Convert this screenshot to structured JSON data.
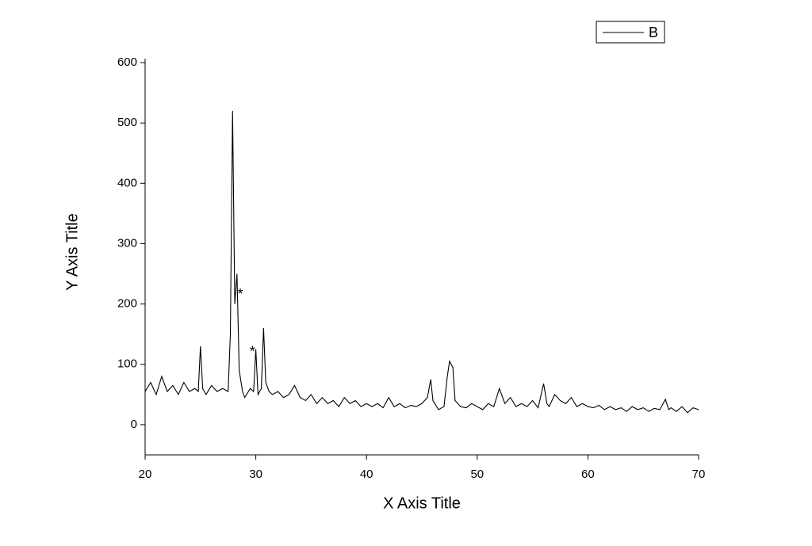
{
  "chart_data": {
    "type": "line",
    "x_label": "X Axis Title",
    "y_label": "Y Axis Title",
    "x": [
      20,
      20.5,
      21,
      21.5,
      22,
      22.5,
      23,
      23.5,
      24,
      24.5,
      24.8,
      25,
      25.2,
      25.5,
      26,
      26.5,
      27,
      27.5,
      27.7,
      27.9,
      28.1,
      28.3,
      28.5,
      28.8,
      29,
      29.5,
      29.8,
      30,
      30.2,
      30.5,
      30.7,
      30.9,
      31.2,
      31.5,
      32,
      32.5,
      33,
      33.5,
      34,
      34.5,
      35,
      35.5,
      36,
      36.5,
      37,
      37.5,
      38,
      38.5,
      39,
      39.5,
      40,
      40.5,
      41,
      41.5,
      42,
      42.5,
      43,
      43.5,
      44,
      44.5,
      45,
      45.5,
      45.8,
      46,
      46.5,
      47,
      47.3,
      47.5,
      47.8,
      48,
      48.5,
      49,
      49.5,
      50,
      50.5,
      51,
      51.5,
      52,
      52.5,
      53,
      53.5,
      54,
      54.5,
      55,
      55.5,
      56,
      56.3,
      56.5,
      57,
      57.5,
      58,
      58.5,
      59,
      59.5,
      60,
      60.5,
      61,
      61.5,
      62,
      62.5,
      63,
      63.5,
      64,
      64.5,
      65,
      65.5,
      66,
      66.5,
      67,
      67.3,
      67.5,
      68,
      68.5,
      69,
      69.5,
      70
    ],
    "series": [
      {
        "name": "B",
        "color": "#000000",
        "values": [
          55,
          70,
          50,
          80,
          55,
          65,
          50,
          70,
          55,
          60,
          55,
          130,
          60,
          50,
          65,
          55,
          60,
          55,
          150,
          520,
          200,
          250,
          90,
          55,
          45,
          60,
          55,
          125,
          50,
          60,
          160,
          70,
          55,
          50,
          55,
          45,
          50,
          65,
          45,
          40,
          50,
          35,
          45,
          35,
          40,
          30,
          45,
          35,
          40,
          30,
          35,
          30,
          35,
          28,
          45,
          30,
          35,
          28,
          32,
          30,
          35,
          45,
          75,
          40,
          25,
          30,
          80,
          105,
          95,
          40,
          30,
          28,
          35,
          30,
          25,
          35,
          30,
          60,
          35,
          45,
          30,
          35,
          30,
          40,
          28,
          68,
          35,
          30,
          50,
          40,
          35,
          45,
          30,
          35,
          30,
          28,
          32,
          25,
          30,
          25,
          28,
          22,
          30,
          25,
          28,
          22,
          27,
          25,
          42,
          25,
          28,
          22,
          30,
          20,
          28,
          25
        ]
      }
    ],
    "annotations": [
      {
        "text": "*",
        "x": 28.6,
        "y": 215,
        "color": "#ff0000"
      },
      {
        "text": "*",
        "x": 29.7,
        "y": 120,
        "color": "#ff0000"
      }
    ],
    "xlim": [
      20,
      70
    ],
    "xticks": [
      20,
      30,
      40,
      50,
      60,
      70
    ],
    "ylim": [
      -50,
      600
    ],
    "yticks": [
      0,
      100,
      200,
      300,
      400,
      500,
      600
    ],
    "grid": false,
    "legend": "top-right"
  }
}
